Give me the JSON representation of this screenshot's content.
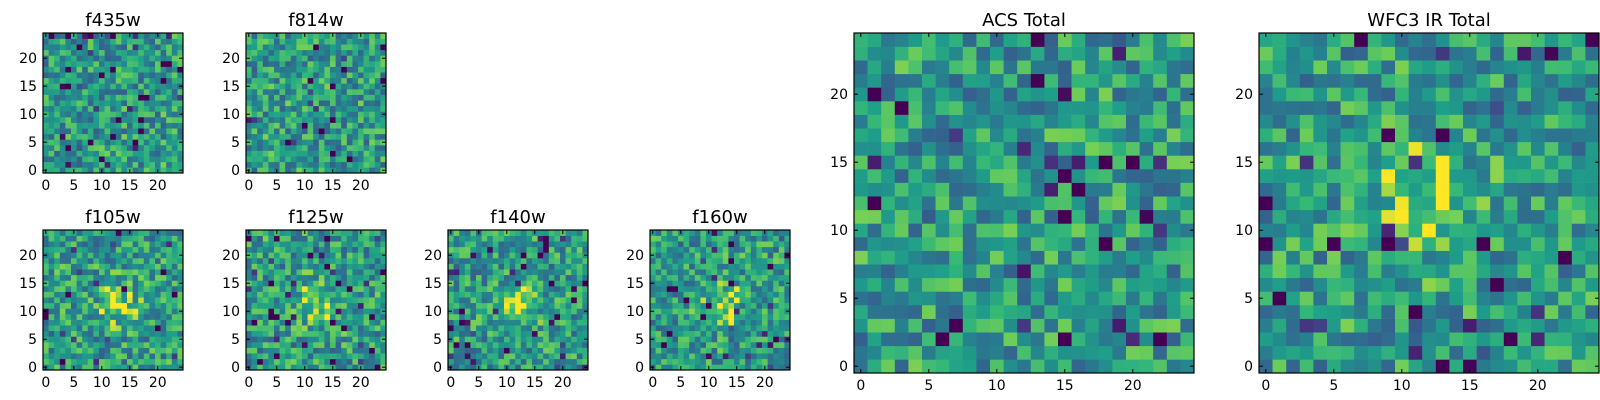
{
  "chart_data": [
    {
      "type": "heatmap",
      "title": "f435w",
      "xticks": [
        0,
        5,
        10,
        15,
        20
      ],
      "yticks": [
        0,
        5,
        10,
        15,
        20
      ],
      "xlim": [
        -0.5,
        24.5
      ],
      "ylim": [
        -0.5,
        24.5
      ],
      "grid_size": [
        25,
        25
      ],
      "colormap": "viridis",
      "values": "per-pixel noise, no visible structure (not readable from image)"
    },
    {
      "type": "heatmap",
      "title": "f814w",
      "xticks": [
        0,
        5,
        10,
        15,
        20
      ],
      "yticks": [
        0,
        5,
        10,
        15,
        20
      ],
      "xlim": [
        -0.5,
        24.5
      ],
      "ylim": [
        -0.5,
        24.5
      ],
      "grid_size": [
        25,
        25
      ],
      "colormap": "viridis",
      "values": "per-pixel noise, no visible structure (not readable from image)"
    },
    {
      "type": "heatmap",
      "title": "f105w",
      "xticks": [
        0,
        5,
        10,
        15,
        20
      ],
      "yticks": [
        0,
        5,
        10,
        15,
        20
      ],
      "xlim": [
        -0.5,
        24.5
      ],
      "ylim": [
        -0.5,
        24.5
      ],
      "grid_size": [
        25,
        25
      ],
      "colormap": "viridis",
      "values": "noise with faint bright blob near x≈13, y≈11"
    },
    {
      "type": "heatmap",
      "title": "f125w",
      "xticks": [
        0,
        5,
        10,
        15,
        20
      ],
      "yticks": [
        0,
        5,
        10,
        15,
        20
      ],
      "xlim": [
        -0.5,
        24.5
      ],
      "ylim": [
        -0.5,
        24.5
      ],
      "grid_size": [
        25,
        25
      ],
      "colormap": "viridis",
      "values": "noise with bright blob near x≈12, y≈11"
    },
    {
      "type": "heatmap",
      "title": "f140w",
      "xticks": [
        0,
        5,
        10,
        15,
        20
      ],
      "yticks": [
        0,
        5,
        10,
        15,
        20
      ],
      "xlim": [
        -0.5,
        24.5
      ],
      "ylim": [
        -0.5,
        24.5
      ],
      "grid_size": [
        25,
        25
      ],
      "colormap": "viridis",
      "values": "noise with bright blob near x≈12, y≈11"
    },
    {
      "type": "heatmap",
      "title": "f160w",
      "xticks": [
        0,
        5,
        10,
        15,
        20
      ],
      "yticks": [
        0,
        5,
        10,
        15,
        20
      ],
      "xlim": [
        -0.5,
        24.5
      ],
      "ylim": [
        -0.5,
        24.5
      ],
      "grid_size": [
        25,
        25
      ],
      "colormap": "viridis",
      "values": "noise with bright blob near x≈13, y≈11"
    },
    {
      "type": "heatmap",
      "title": "ACS Total",
      "xticks": [
        0,
        5,
        10,
        15,
        20
      ],
      "yticks": [
        0,
        5,
        10,
        15,
        20
      ],
      "xlim": [
        -0.5,
        24.5
      ],
      "ylim": [
        -0.5,
        24.5
      ],
      "grid_size": [
        25,
        25
      ],
      "colormap": "viridis",
      "values": "per-pixel noise, no visible structure (not readable from image)"
    },
    {
      "type": "heatmap",
      "title": "WFC3 IR Total",
      "xticks": [
        0,
        5,
        10,
        15,
        20
      ],
      "yticks": [
        0,
        5,
        10,
        15,
        20
      ],
      "xlim": [
        -0.5,
        24.5
      ],
      "ylim": [
        -0.5,
        24.5
      ],
      "grid_size": [
        25,
        25
      ],
      "colormap": "viridis",
      "values": "noise with bright blob centred near x≈12, y≈12"
    }
  ]
}
